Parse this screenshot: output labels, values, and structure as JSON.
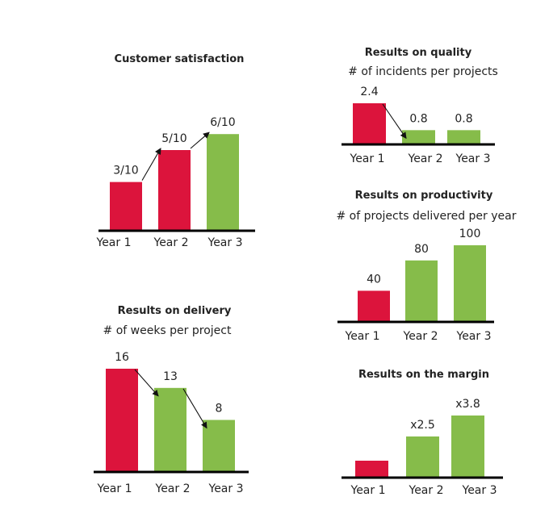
{
  "colors": {
    "red": "#dc143c",
    "green": "#86bc4a",
    "axis": "#000000"
  },
  "chart_data": [
    {
      "type": "bar",
      "title": "Customer satisfaction",
      "subtitle": "",
      "categories": [
        "Year 1",
        "Year 2",
        "Year 3"
      ],
      "values": [
        3,
        5,
        6
      ],
      "data_labels": [
        "3/10",
        "5/10",
        "6/10"
      ],
      "bar_colors": [
        "red",
        "red",
        "green"
      ],
      "ylim": [
        0,
        10
      ]
    },
    {
      "type": "bar",
      "title": "Results on quality",
      "subtitle": "# of incidents per projects",
      "categories": [
        "Year 1",
        "Year 2",
        "Year 3"
      ],
      "values": [
        2.4,
        0.8,
        0.8
      ],
      "data_labels": [
        "2.4",
        "0.8",
        "0.8"
      ],
      "bar_colors": [
        "red",
        "green",
        "green"
      ],
      "ylim": [
        0,
        2.4
      ]
    },
    {
      "type": "bar",
      "title": "Results on productivity",
      "subtitle": "# of projects delivered per year",
      "categories": [
        "Year 1",
        "Year 2",
        "Year 3"
      ],
      "values": [
        40,
        80,
        100
      ],
      "data_labels": [
        "40",
        "80",
        "100"
      ],
      "bar_colors": [
        "red",
        "green",
        "green"
      ],
      "ylim": [
        0,
        100
      ]
    },
    {
      "type": "bar",
      "title": "Results on delivery",
      "subtitle": "# of weeks per project",
      "categories": [
        "Year 1",
        "Year 2",
        "Year 3"
      ],
      "values": [
        16,
        13,
        8
      ],
      "data_labels": [
        "16",
        "13",
        "8"
      ],
      "bar_colors": [
        "red",
        "green",
        "green"
      ],
      "ylim": [
        0,
        16
      ]
    },
    {
      "type": "bar",
      "title": "Results on the margin",
      "subtitle": "",
      "categories": [
        "Year 1",
        "Year 2",
        "Year 3"
      ],
      "values": [
        1,
        2.5,
        3.8
      ],
      "data_labels": [
        "",
        "x2.5",
        "x3.8"
      ],
      "bar_colors": [
        "red",
        "green",
        "green"
      ],
      "ylim": [
        0,
        3.8
      ]
    }
  ]
}
